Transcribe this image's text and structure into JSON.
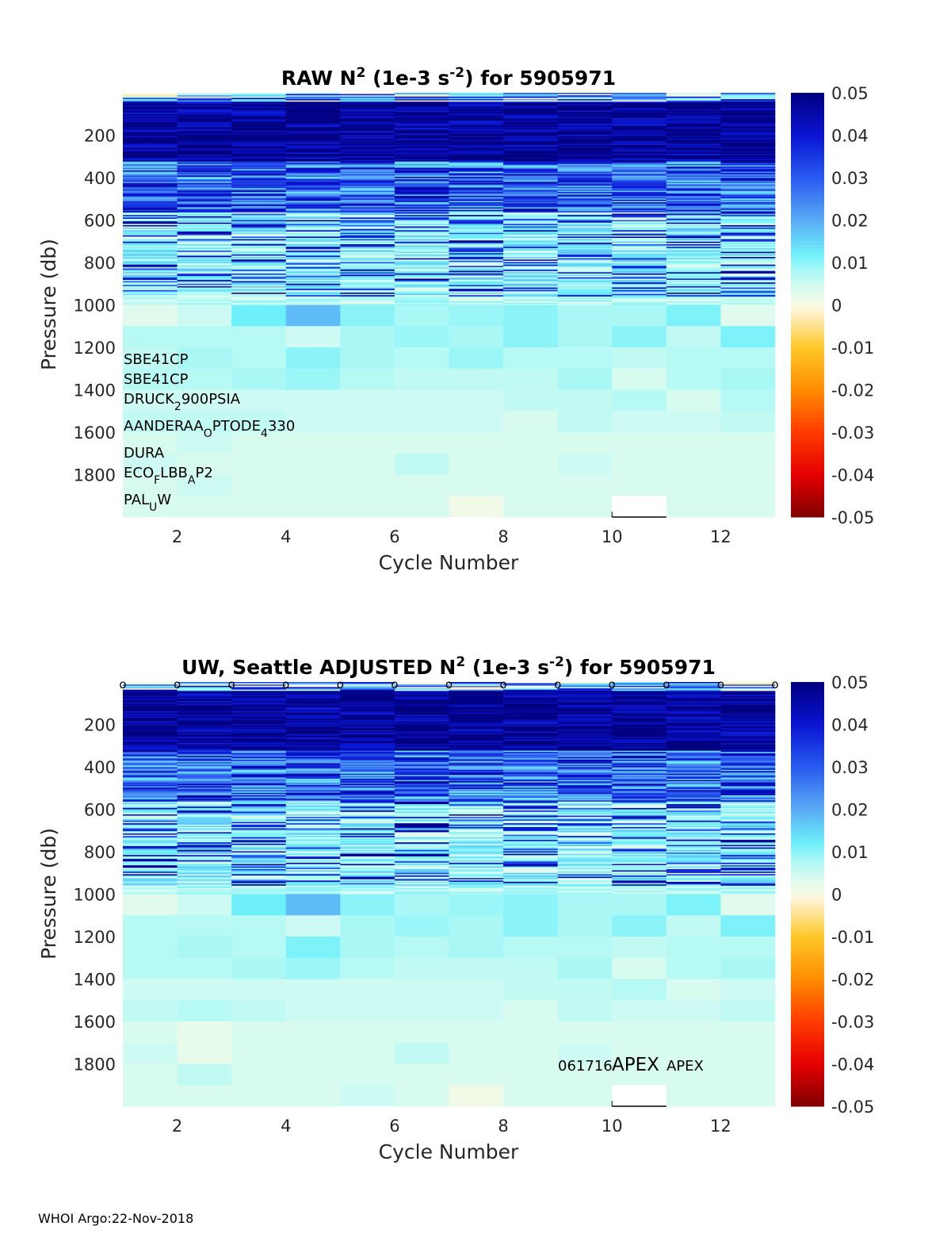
{
  "footer": "WHOI Argo:22-Nov-2018",
  "colorbar": {
    "ticks": [
      "0.05",
      "0.04",
      "0.03",
      "0.02",
      "0.01",
      "0",
      "-0.01",
      "-0.02",
      "-0.03",
      "-0.04",
      "-0.05"
    ],
    "range": [
      -0.05,
      0.05
    ]
  },
  "chart_data": [
    {
      "type": "heatmap",
      "title_parts": [
        "RAW N",
        "2",
        " (1e-3 s",
        "-2",
        ") for 5905971"
      ],
      "xlabel": "Cycle Number",
      "ylabel": "Pressure (db)",
      "xticks": [
        "2",
        "4",
        "6",
        "8",
        "10",
        "12"
      ],
      "yticks": [
        "200",
        "400",
        "600",
        "800",
        "1000",
        "1200",
        "1400",
        "1600",
        "1800"
      ],
      "xlim": [
        1,
        13
      ],
      "ylim": [
        2000,
        0
      ],
      "clim": [
        -0.05,
        0.05
      ],
      "sensors": [
        {
          "parts": [
            "SBE41CP"
          ]
        },
        {
          "parts": [
            "SBE41CP"
          ]
        },
        {
          "parts": [
            "DRUCK",
            "2",
            "900PSIA"
          ]
        },
        {
          "parts": [
            "AANDERAA",
            "O",
            "PTODE",
            "4",
            "330"
          ]
        },
        {
          "parts": [
            "DURA"
          ]
        },
        {
          "parts": [
            "ECO",
            "F",
            "LBB",
            "A",
            "P2"
          ]
        },
        {
          "parts": [
            "PAL",
            "U",
            "W"
          ]
        }
      ],
      "cycles": [
        1,
        2,
        3,
        4,
        5,
        6,
        7,
        8,
        9,
        10,
        11,
        12
      ],
      "deep_rows": [
        {
          "p": 1000,
          "v": [
            0.003,
            0.005,
            0.012,
            0.018,
            0.01,
            0.008,
            0.009,
            0.01,
            0.008,
            0.008,
            0.011,
            0.003
          ]
        },
        {
          "p": 1100,
          "v": [
            0.007,
            0.007,
            0.007,
            0.005,
            0.008,
            0.009,
            0.008,
            0.01,
            0.008,
            0.01,
            0.006,
            0.011
          ]
        },
        {
          "p": 1200,
          "v": [
            0.006,
            0.008,
            0.007,
            0.01,
            0.008,
            0.007,
            0.009,
            0.007,
            0.007,
            0.006,
            0.007,
            0.007
          ]
        },
        {
          "p": 1300,
          "v": [
            0.007,
            0.007,
            0.008,
            0.009,
            0.007,
            0.006,
            0.006,
            0.006,
            0.008,
            0.004,
            0.007,
            0.008
          ]
        },
        {
          "p": 1400,
          "v": [
            0.005,
            0.005,
            0.005,
            0.005,
            0.005,
            0.005,
            0.005,
            0.006,
            0.006,
            0.007,
            0.004,
            0.007
          ]
        },
        {
          "p": 1500,
          "v": [
            0.006,
            0.006,
            0.006,
            0.005,
            0.005,
            0.005,
            0.005,
            0.004,
            0.006,
            0.005,
            0.005,
            0.006
          ]
        },
        {
          "p": 1600,
          "v": [
            0.004,
            0.005,
            0.004,
            0.004,
            0.004,
            0.004,
            0.004,
            0.004,
            0.004,
            0.004,
            0.004,
            0.004
          ]
        },
        {
          "p": 1700,
          "v": [
            0.005,
            0.004,
            0.004,
            0.004,
            0.004,
            0.006,
            0.004,
            0.004,
            0.005,
            0.004,
            0.004,
            0.004
          ]
        },
        {
          "p": 1800,
          "v": [
            0.004,
            0.005,
            0.004,
            0.004,
            0.004,
            0.004,
            0.004,
            0.004,
            0.004,
            0.004,
            0.004,
            0.004
          ]
        },
        {
          "p": 1900,
          "v": [
            0.004,
            0.004,
            0.004,
            0.004,
            0.004,
            0.004,
            0.001,
            0.004,
            0.004,
            null,
            0.004,
            0.004
          ]
        }
      ]
    },
    {
      "type": "heatmap",
      "title_parts": [
        "UW, Seattle  ADJUSTED N",
        "2",
        " (1e-3 s",
        "-2",
        ") for 5905971"
      ],
      "xlabel": "Cycle Number",
      "ylabel": "Pressure (db)",
      "xticks": [
        "2",
        "4",
        "6",
        "8",
        "10",
        "12"
      ],
      "yticks": [
        "200",
        "400",
        "600",
        "800",
        "1000",
        "1200",
        "1400",
        "1600",
        "1800"
      ],
      "xlim": [
        1,
        13
      ],
      "ylim": [
        2000,
        0
      ],
      "clim": [
        -0.05,
        0.05
      ],
      "markers": "o",
      "annotation": [
        "061716",
        "APEX",
        "APEX"
      ],
      "cycles": [
        1,
        2,
        3,
        4,
        5,
        6,
        7,
        8,
        9,
        10,
        11,
        12
      ],
      "deep_rows": [
        {
          "p": 1000,
          "v": [
            0.003,
            0.005,
            0.012,
            0.018,
            0.01,
            0.008,
            0.009,
            0.01,
            0.008,
            0.008,
            0.011,
            0.003
          ]
        },
        {
          "p": 1100,
          "v": [
            0.007,
            0.007,
            0.007,
            0.005,
            0.008,
            0.009,
            0.008,
            0.01,
            0.008,
            0.01,
            0.006,
            0.011
          ]
        },
        {
          "p": 1200,
          "v": [
            0.007,
            0.008,
            0.007,
            0.011,
            0.008,
            0.007,
            0.008,
            0.007,
            0.007,
            0.006,
            0.007,
            0.007
          ]
        },
        {
          "p": 1300,
          "v": [
            0.007,
            0.007,
            0.008,
            0.009,
            0.007,
            0.006,
            0.006,
            0.006,
            0.008,
            0.004,
            0.007,
            0.008
          ]
        },
        {
          "p": 1400,
          "v": [
            0.005,
            0.005,
            0.005,
            0.005,
            0.005,
            0.005,
            0.005,
            0.006,
            0.006,
            0.007,
            0.004,
            0.005
          ]
        },
        {
          "p": 1500,
          "v": [
            0.006,
            0.007,
            0.006,
            0.005,
            0.005,
            0.005,
            0.005,
            0.004,
            0.006,
            0.005,
            0.005,
            0.006
          ]
        },
        {
          "p": 1600,
          "v": [
            0.004,
            0.002,
            0.004,
            0.004,
            0.004,
            0.004,
            0.004,
            0.004,
            0.004,
            0.004,
            0.004,
            0.004
          ]
        },
        {
          "p": 1700,
          "v": [
            0.005,
            0.002,
            0.004,
            0.004,
            0.004,
            0.006,
            0.004,
            0.004,
            0.005,
            0.004,
            0.004,
            0.004
          ]
        },
        {
          "p": 1800,
          "v": [
            0.004,
            0.006,
            0.004,
            0.004,
            0.004,
            0.004,
            0.004,
            0.004,
            0.004,
            0.004,
            0.004,
            0.004
          ]
        },
        {
          "p": 1900,
          "v": [
            0.004,
            0.004,
            0.004,
            0.004,
            0.005,
            0.004,
            0.001,
            0.004,
            0.004,
            null,
            0.004,
            0.004
          ]
        }
      ]
    }
  ]
}
